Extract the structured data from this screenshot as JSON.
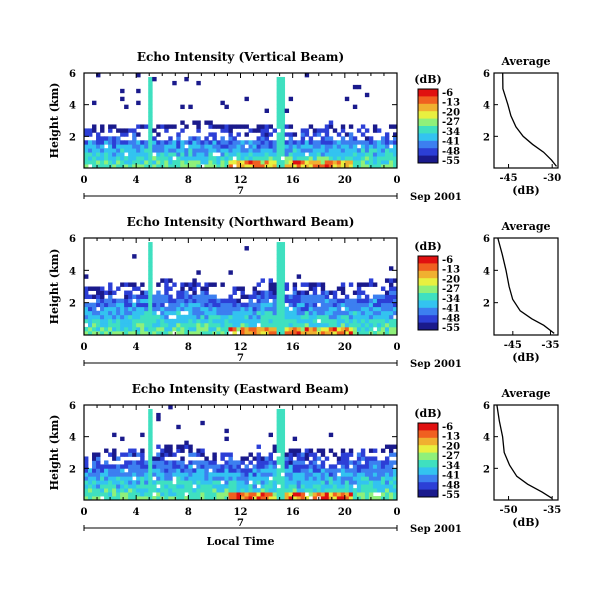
{
  "chart_data": [
    {
      "type": "heatmap",
      "title": "Echo Intensity (Vertical Beam)",
      "ylabel": "Height (km)",
      "xlabel": "",
      "x_ticks": [
        "0",
        "4",
        "8",
        "12",
        "16",
        "20",
        "0"
      ],
      "y_ticks": [
        "2",
        "4",
        "6"
      ],
      "ylim": [
        0,
        6
      ],
      "xlim": [
        0,
        24
      ],
      "date_label": "7",
      "date_suffix": "Sep 2001",
      "colorbar": {
        "unit": "(dB)",
        "ticks": [
          "-6",
          "-13",
          "-20",
          "-27",
          "-34",
          "-41",
          "-48",
          "-55"
        ]
      },
      "average": {
        "title": "Average",
        "xlabel": "(dB)",
        "x_ticks": [
          "-45",
          "-30"
        ],
        "xlim": [
          -50,
          -28
        ],
        "y_ticks": [
          "2",
          "4",
          "6"
        ],
        "points": [
          [
            -47,
            6.0
          ],
          [
            -46.5,
            5.0
          ],
          [
            -45.5,
            4.0
          ],
          [
            -44,
            3.3
          ],
          [
            -42.5,
            2.6
          ],
          [
            -40,
            2.0
          ],
          [
            -37,
            1.5
          ],
          [
            -33,
            1.0
          ],
          [
            -30,
            0.5
          ],
          [
            -28.5,
            0.1
          ]
        ]
      }
    },
    {
      "type": "heatmap",
      "title": "Echo Intensity (Northward Beam)",
      "ylabel": "Height (km)",
      "xlabel": "",
      "x_ticks": [
        "0",
        "4",
        "8",
        "12",
        "16",
        "20",
        "0"
      ],
      "y_ticks": [
        "2",
        "4",
        "6"
      ],
      "ylim": [
        0,
        6
      ],
      "xlim": [
        0,
        24
      ],
      "date_label": "7",
      "date_suffix": "Sep 2001",
      "colorbar": {
        "unit": "(dB)",
        "ticks": [
          "-6",
          "-13",
          "-20",
          "-27",
          "-34",
          "-41",
          "-48",
          "-55"
        ]
      },
      "average": {
        "title": "Average",
        "xlabel": "(dB)",
        "x_ticks": [
          "-45",
          "-35"
        ],
        "xlim": [
          -50,
          -33
        ],
        "y_ticks": [
          "2",
          "4",
          "6"
        ],
        "points": [
          [
            -49,
            6.0
          ],
          [
            -48,
            5.0
          ],
          [
            -47,
            4.0
          ],
          [
            -46,
            3.0
          ],
          [
            -45,
            2.2
          ],
          [
            -43,
            1.5
          ],
          [
            -40,
            1.0
          ],
          [
            -37,
            0.6
          ],
          [
            -34,
            0.1
          ]
        ]
      }
    },
    {
      "type": "heatmap",
      "title": "Echo Intensity (Eastward Beam)",
      "ylabel": "Height (km)",
      "xlabel": "Local Time",
      "x_ticks": [
        "0",
        "4",
        "8",
        "12",
        "16",
        "20",
        "0"
      ],
      "y_ticks": [
        "2",
        "4",
        "6"
      ],
      "ylim": [
        0,
        6
      ],
      "xlim": [
        0,
        24
      ],
      "date_label": "7",
      "date_suffix": "Sep 2001",
      "colorbar": {
        "unit": "(dB)",
        "ticks": [
          "-6",
          "-13",
          "-20",
          "-27",
          "-34",
          "-41",
          "-48",
          "-55"
        ]
      },
      "average": {
        "title": "Average",
        "xlabel": "(dB)",
        "x_ticks": [
          "-50",
          "-35"
        ],
        "xlim": [
          -55,
          -33
        ],
        "y_ticks": [
          "2",
          "4",
          "6"
        ],
        "points": [
          [
            -54,
            6.0
          ],
          [
            -53,
            5.0
          ],
          [
            -52,
            4.0
          ],
          [
            -51,
            3.0
          ],
          [
            -49.5,
            2.2
          ],
          [
            -47,
            1.5
          ],
          [
            -43,
            1.0
          ],
          [
            -38,
            0.5
          ],
          [
            -35,
            0.1
          ]
        ]
      }
    }
  ],
  "colormap": [
    "#1a1a8c",
    "#2c3fd6",
    "#3c7ff0",
    "#33c3f0",
    "#3fe0c0",
    "#8ff07a",
    "#e8f040",
    "#f0b030",
    "#f06020",
    "#e01010"
  ]
}
